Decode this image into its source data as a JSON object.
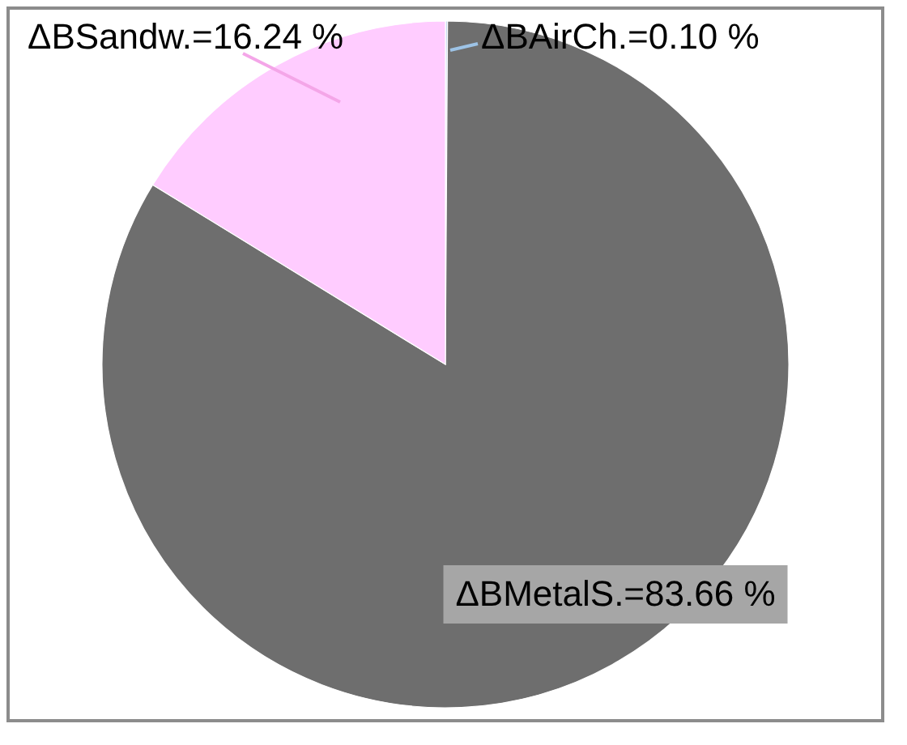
{
  "chart_data": {
    "type": "pie",
    "categories": [
      null,
      null,
      null
    ],
    "values": [
      0.1,
      83.66,
      16.24
    ],
    "colors": [
      "#c6d9f1",
      "#6e6e6e",
      "#ffccff"
    ],
    "value_labels": [
      "ΔBAirCh.=0.10 %",
      "ΔBMetalS.=83.66 %",
      "ΔBSandw.=16.24 %"
    ]
  }
}
